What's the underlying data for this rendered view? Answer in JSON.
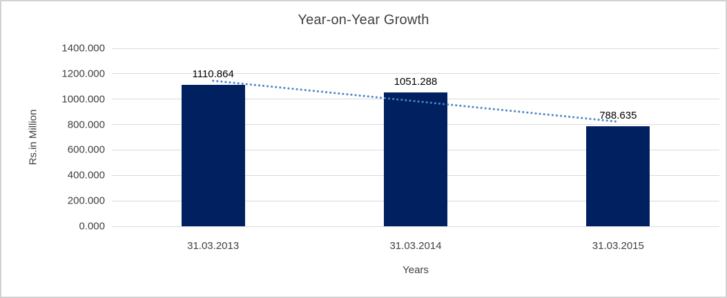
{
  "chart_data": {
    "type": "bar",
    "title": "Year-on-Year Growth",
    "xlabel": "Years",
    "ylabel": "Rs.in Million",
    "categories": [
      "31.03.2013",
      "31.03.2014",
      "31.03.2015"
    ],
    "values": [
      1110.864,
      1051.288,
      788.635
    ],
    "data_labels": [
      "1110.864",
      "1051.288",
      "788.635"
    ],
    "ylim": [
      0,
      1400
    ],
    "ytick_step": 200,
    "ytick_labels": [
      "0.000",
      "200.000",
      "400.000",
      "600.000",
      "800.000",
      "1000.000",
      "1200.000",
      "1400.000"
    ],
    "grid": true,
    "legend": "none",
    "trendline": {
      "kind": "linear",
      "style": "dotted",
      "color": "#4A86C8"
    },
    "colors": {
      "bar": "#002060",
      "gridline": "#D9D9D9",
      "text": "#404040",
      "data_label": "#000000",
      "border": "#D2D2D2",
      "background": "#FFFFFF"
    }
  }
}
